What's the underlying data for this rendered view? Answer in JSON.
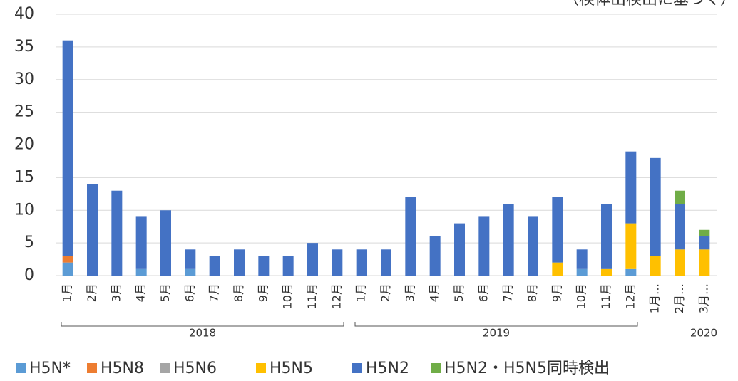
{
  "chart_data": {
    "type": "stacked_bar",
    "title": "（検体出検出に基づく）",
    "categories": [
      "1月",
      "2月",
      "3月",
      "4月",
      "5月",
      "6月",
      "7月",
      "8月",
      "9月",
      "10月",
      "11月",
      "12月",
      "1月",
      "2月",
      "3月",
      "4月",
      "5月",
      "6月",
      "7月",
      "8月",
      "9月",
      "10月",
      "11月",
      "12月",
      "1月…",
      "2月…",
      "3月…"
    ],
    "group_labels": [
      "2018",
      "2019",
      "2020"
    ],
    "series": [
      {
        "name": "H5N*",
        "color": "#5b9bd5",
        "values": [
          2,
          0,
          0,
          1,
          0,
          1,
          0,
          0,
          0,
          0,
          0,
          0,
          0,
          0,
          0,
          0,
          0,
          0,
          0,
          0,
          0,
          1,
          0,
          1,
          0,
          0,
          0
        ]
      },
      {
        "name": "H5N8",
        "color": "#ed7d31",
        "values": [
          1,
          0,
          0,
          0,
          0,
          0,
          0,
          0,
          0,
          0,
          0,
          0,
          0,
          0,
          0,
          0,
          0,
          0,
          0,
          0,
          0,
          0,
          0,
          0,
          0,
          0,
          0
        ]
      },
      {
        "name": "H5N6",
        "color": "#a5a5a5",
        "values": [
          0,
          0,
          0,
          0,
          0,
          0,
          0,
          0,
          0,
          0,
          0,
          0,
          0,
          0,
          0,
          0,
          0,
          0,
          0,
          0,
          0,
          0,
          0,
          0,
          0,
          0,
          0
        ]
      },
      {
        "name": "H5N5",
        "color": "#ffc000",
        "values": [
          0,
          0,
          0,
          0,
          0,
          0,
          0,
          0,
          0,
          0,
          0,
          0,
          0,
          0,
          0,
          0,
          0,
          0,
          0,
          0,
          2,
          0,
          1,
          7,
          3,
          4,
          4
        ]
      },
      {
        "name": "H5N2",
        "color": "#4472c4",
        "values": [
          33,
          14,
          13,
          8,
          10,
          3,
          3,
          4,
          3,
          3,
          5,
          4,
          4,
          4,
          12,
          6,
          8,
          9,
          11,
          9,
          10,
          3,
          10,
          11,
          15,
          7,
          2
        ]
      },
      {
        "name": "H5N2・H5N5同時検出",
        "color": "#70ad47",
        "values": [
          0,
          0,
          0,
          0,
          0,
          0,
          0,
          0,
          0,
          0,
          0,
          0,
          0,
          0,
          0,
          0,
          0,
          0,
          0,
          0,
          0,
          0,
          0,
          0,
          0,
          2,
          1
        ]
      }
    ],
    "ylim": [
      0,
      40
    ],
    "yticks": [
      0,
      5,
      10,
      15,
      20,
      25,
      30,
      35,
      40
    ],
    "grid": true,
    "legend": "bottom"
  }
}
